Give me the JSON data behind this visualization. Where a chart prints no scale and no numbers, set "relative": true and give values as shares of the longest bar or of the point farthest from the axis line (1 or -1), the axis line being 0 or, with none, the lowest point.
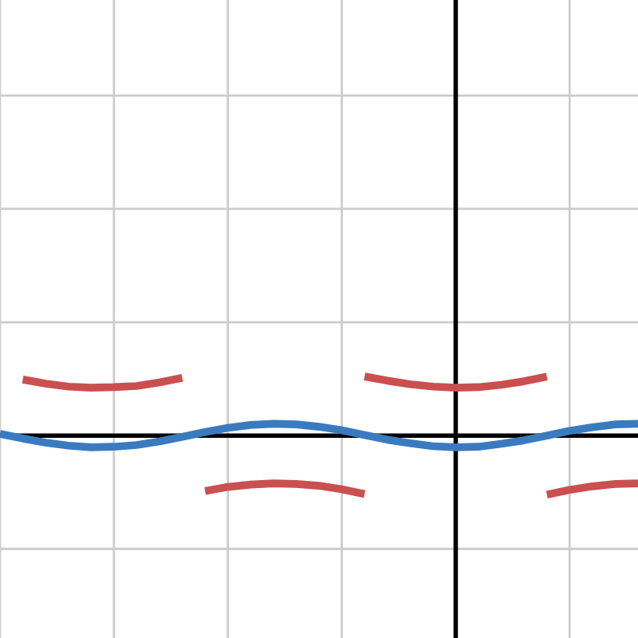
{
  "chart_data": {
    "type": "line",
    "relative": true,
    "grid": true,
    "legend": false,
    "line_style": "solid",
    "marker": "none",
    "categories": [
      null,
      null,
      null,
      null,
      null,
      null,
      null,
      null,
      null,
      null,
      null,
      null,
      null,
      null,
      null,
      null,
      null,
      null,
      null,
      null,
      null,
      null,
      null,
      null,
      null,
      null,
      null,
      null,
      null
    ],
    "series": [
      {
        "color": "#3a7bbf",
        "values": [
          0.03,
          -0.05,
          -0.12,
          -0.17,
          -0.2,
          -0.19,
          -0.16,
          -0.1,
          -0.02,
          0.06,
          0.13,
          0.18,
          0.2,
          0.19,
          0.15,
          0.09,
          0.01,
          -0.07,
          -0.13,
          -0.18,
          -0.2,
          -0.19,
          -0.14,
          -0.08,
          0,
          0.08,
          0.14,
          0.19,
          0.2
        ]
      },
      {
        "color": "#c9504f",
        "values": [
          null,
          0.95,
          0.88,
          0.83,
          0.81,
          0.82,
          0.84,
          0.9,
          0.98,
          null,
          null,
          null,
          null,
          null,
          null,
          null,
          1.0,
          0.93,
          0.87,
          0.83,
          0.81,
          0.82,
          0.86,
          0.92,
          1.0,
          null,
          null,
          null,
          null
        ]
      },
      {
        "color": "#c9504f",
        "values": [
          null,
          null,
          null,
          null,
          null,
          null,
          null,
          null,
          null,
          -0.94,
          -0.87,
          -0.83,
          -0.81,
          -0.82,
          -0.85,
          -0.91,
          -0.99,
          null,
          null,
          null,
          null,
          null,
          null,
          null,
          -1.0,
          -0.92,
          -0.86,
          -0.82,
          -0.81
        ]
      }
    ],
    "ref_lines": [
      {
        "axis": "y",
        "value": 0,
        "color": "#000000"
      }
    ]
  }
}
